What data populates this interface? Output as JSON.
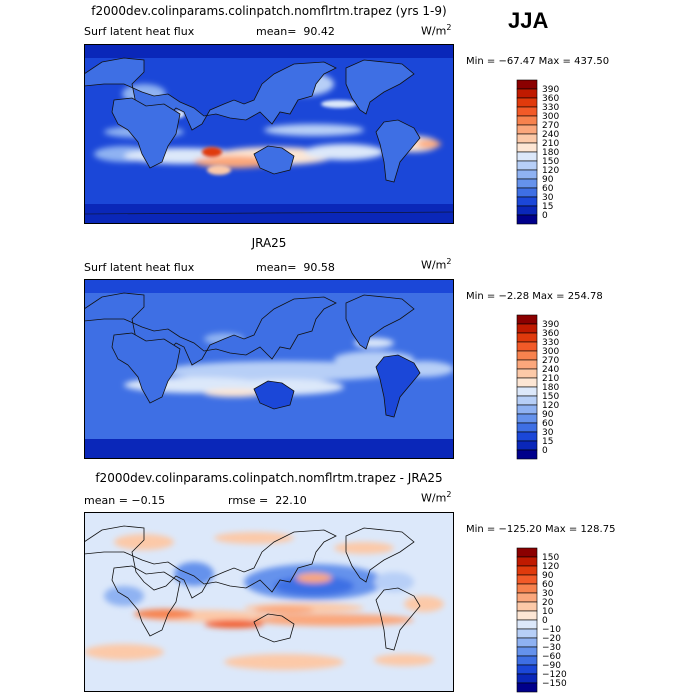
{
  "season": "JJA",
  "units_label": "W/m",
  "units_exp": "2",
  "panels": [
    {
      "title": "f2000dev.colinparams.colinpatch.nomflrtm.trapez (yrs 1-9)",
      "field_label": "Surf latent heat flux",
      "stat_label": "mean=",
      "stat_value": "90.42",
      "min_max": "Min = −67.47 Max = 437.50"
    },
    {
      "title": "JRA25",
      "field_label": "Surf latent heat flux",
      "stat_label": "mean=",
      "stat_value": "90.58",
      "min_max": "Min =  −2.28 Max = 254.78"
    },
    {
      "title": "f2000dev.colinparams.colinpatch.nomflrtm.trapez - JRA25",
      "field_label": "mean =  −0.15",
      "stat_label": "rmse =",
      "stat_value": "22.10",
      "min_max": "Min = −125.20 Max = 128.75"
    }
  ],
  "chart_data": [
    {
      "type": "heatmap",
      "title": "f2000dev.colinparams.colinpatch.nomflrtm.trapez (yrs 1-9)",
      "subtitle": "Surf latent heat flux",
      "units": "W/m2",
      "mean": 90.42,
      "min": -67.47,
      "max": 437.5,
      "colorbar_levels": [
        "390",
        "360",
        "330",
        "300",
        "270",
        "240",
        "210",
        "180",
        "150",
        "120",
        "90",
        "60",
        "30",
        "15",
        "0"
      ],
      "colorbar_colors": [
        "#8b0000",
        "#c01a00",
        "#e03a0c",
        "#f25a28",
        "#f7824e",
        "#fba77c",
        "#fcc9a8",
        "#fde6d4",
        "#dce8fa",
        "#b7cff7",
        "#8fb2f2",
        "#6592ec",
        "#3e6fe4",
        "#1b47d8",
        "#0a27b9",
        "#00008b"
      ]
    },
    {
      "type": "heatmap",
      "title": "JRA25",
      "subtitle": "Surf latent heat flux",
      "units": "W/m2",
      "mean": 90.58,
      "min": -2.28,
      "max": 254.78,
      "colorbar_levels": [
        "390",
        "360",
        "330",
        "300",
        "270",
        "240",
        "210",
        "180",
        "150",
        "120",
        "90",
        "60",
        "30",
        "15",
        "0"
      ],
      "colorbar_colors": [
        "#8b0000",
        "#c01a00",
        "#e03a0c",
        "#f25a28",
        "#f7824e",
        "#fba77c",
        "#fcc9a8",
        "#fde6d4",
        "#dce8fa",
        "#b7cff7",
        "#8fb2f2",
        "#6592ec",
        "#3e6fe4",
        "#1b47d8",
        "#0a27b9",
        "#00008b"
      ]
    },
    {
      "type": "heatmap",
      "title": "f2000dev.colinparams.colinpatch.nomflrtm.trapez - JRA25",
      "units": "W/m2",
      "mean": -0.15,
      "rmse": 22.1,
      "min": -125.2,
      "max": 128.75,
      "colorbar_levels": [
        "150",
        "120",
        "90",
        "60",
        "30",
        "20",
        "10",
        "0",
        "−10",
        "−20",
        "−30",
        "−60",
        "−90",
        "−120",
        "−150"
      ],
      "colorbar_colors": [
        "#8b0000",
        "#c01a00",
        "#e03a0c",
        "#f25a28",
        "#f7824e",
        "#fba77c",
        "#fcc9a8",
        "#fde6d4",
        "#dce8fa",
        "#b7cff7",
        "#8fb2f2",
        "#6592ec",
        "#3e6fe4",
        "#1b47d8",
        "#0a27b9",
        "#00008b"
      ]
    }
  ]
}
